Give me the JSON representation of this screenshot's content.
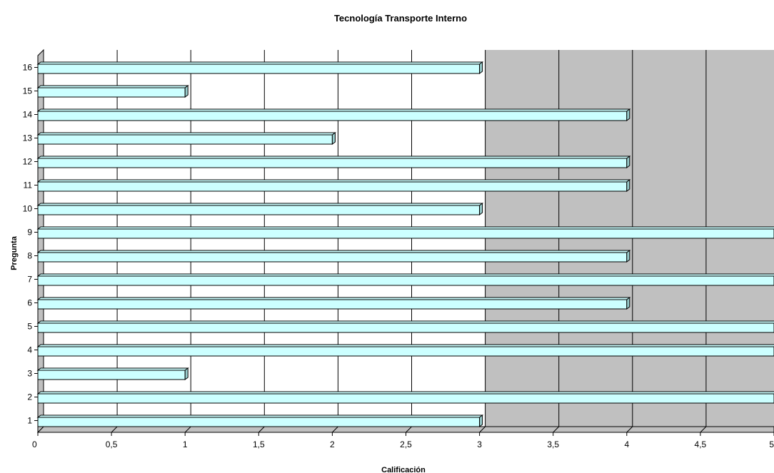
{
  "chart_data": {
    "type": "bar",
    "orientation": "horizontal",
    "title": "Tecnología Transporte Interno",
    "xlabel": "Calificación",
    "ylabel": "Pregunta",
    "categories": [
      "1",
      "2",
      "3",
      "4",
      "5",
      "6",
      "7",
      "8",
      "9",
      "10",
      "11",
      "12",
      "13",
      "14",
      "15",
      "16"
    ],
    "values": [
      3,
      5,
      1,
      5,
      5,
      4,
      5,
      4,
      5,
      3,
      4,
      4,
      2,
      4,
      1,
      3
    ],
    "x_ticks": [
      "0",
      "0,5",
      "1",
      "1,5",
      "2",
      "2,5",
      "3",
      "3,5",
      "4",
      "4,5",
      "5"
    ],
    "xlim": [
      0,
      5
    ],
    "grid": true,
    "legend": "none",
    "colors": {
      "bar_face": "#ccffff",
      "bar_edge": "#000000",
      "bar_side": "#99cccc",
      "plot_back_low": "#ffffff",
      "plot_back_high": "#c0c0c0",
      "grid": "#000000"
    }
  }
}
